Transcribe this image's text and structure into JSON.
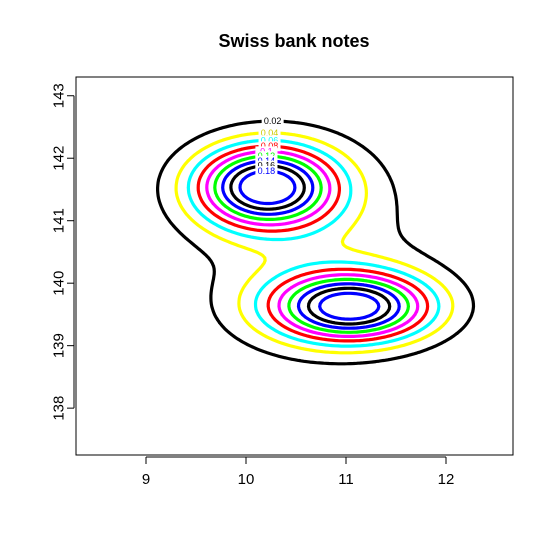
{
  "chart_data": {
    "type": "contour",
    "title": "Swiss bank notes",
    "xlabel": "",
    "ylabel": "",
    "xlim": [
      8.3,
      12.67
    ],
    "ylim": [
      137.25,
      143.3
    ],
    "x_ticks": [
      9,
      10,
      11,
      12
    ],
    "y_ticks": [
      138,
      139,
      140,
      141,
      142,
      143
    ],
    "grid": false,
    "levels": [
      {
        "level": "0.02",
        "color": "#000000"
      },
      {
        "level": "0.04",
        "color": "#ffff00"
      },
      {
        "level": "0.06",
        "color": "#00ffff"
      },
      {
        "level": "0.08",
        "color": "#ff0000"
      },
      {
        "level": "0.1",
        "color": "#ff00ff"
      },
      {
        "level": "0.12",
        "color": "#00ff00"
      },
      {
        "level": "0.14",
        "color": "#0000ff"
      },
      {
        "level": "0.16",
        "color": "#000000"
      },
      {
        "level": "0.18",
        "color": "#0000ff"
      }
    ],
    "peaks": [
      {
        "x": 10.2,
        "y": 141.55,
        "max_density": 0.19
      },
      {
        "x": 11.05,
        "y": 139.62,
        "max_density": 0.185
      }
    ]
  }
}
